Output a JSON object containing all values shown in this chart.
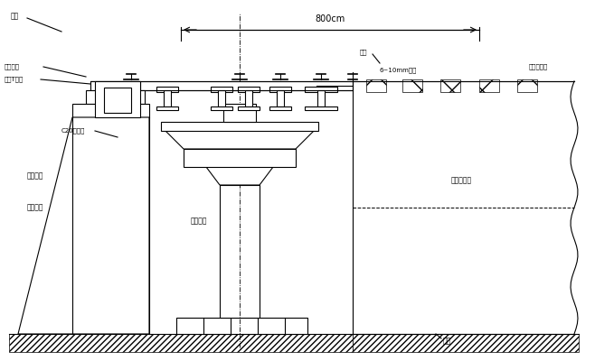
{
  "bg_color": "#ffffff",
  "line_color": "#000000",
  "labels": {
    "dim_800": "800cm",
    "label_top_left": "迁移",
    "label_rail_clamp": "二止宁调",
    "label_beam": "工工T字梁",
    "label_c20": "C20混凝土",
    "label_reinforce": "加密块石",
    "label_existing_wall": "既有边墙",
    "label_bridge_pier": "既有桥墩",
    "label_new_frame": "新架侧位置",
    "label_stopper": "限位",
    "label_steel_plate": "6~10mm钢板",
    "label_hardwood": "硬杂木垫板",
    "label_ground": "地基"
  },
  "figure_width": 6.58,
  "figure_height": 4.0,
  "dpi": 100
}
